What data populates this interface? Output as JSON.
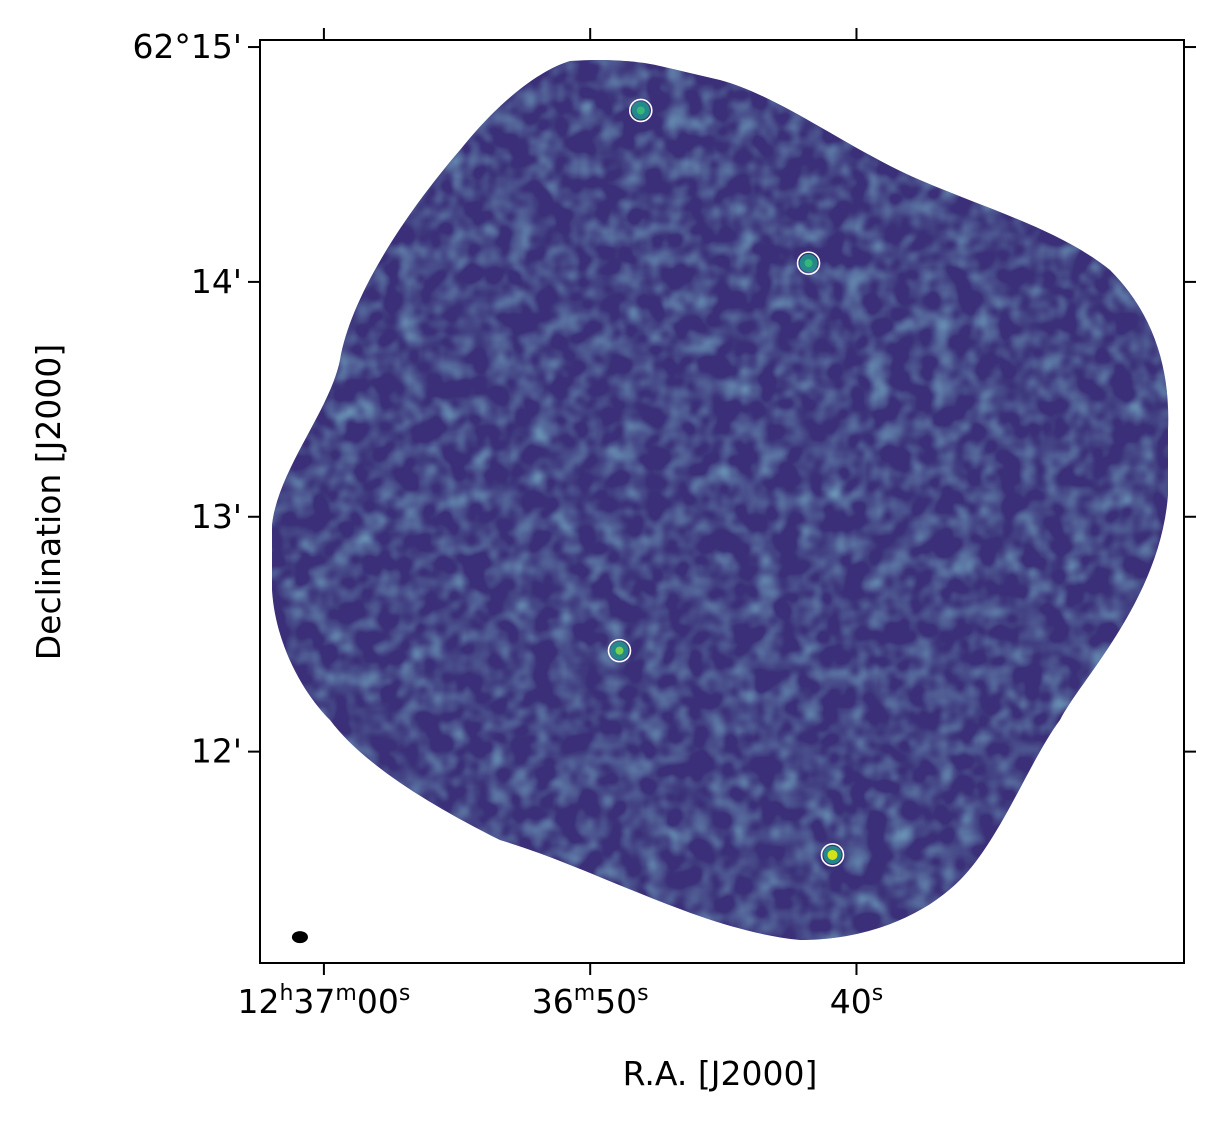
{
  "chart_data": {
    "type": "heatmap",
    "title": "",
    "xlabel": "R.A. [J2000]",
    "ylabel": "Declination [J2000]",
    "colormap": "viridis",
    "xlim_ra_seconds": [
      62.4,
      27.7
    ],
    "ylim_dec_arcmin": [
      11.1,
      15.03
    ],
    "x_ticks": [
      {
        "value": 60,
        "main": "12",
        "sup1": "h",
        "mid": "37",
        "sup2": "m",
        "end": "00",
        "sup3": "s"
      },
      {
        "value": 50,
        "main": "",
        "sup1": "",
        "mid": "36",
        "sup2": "m",
        "end": "50",
        "sup3": "s"
      },
      {
        "value": 40,
        "main": "",
        "sup1": "",
        "mid": "",
        "sup2": "",
        "end": "40",
        "sup3": "s"
      }
    ],
    "y_ticks": [
      {
        "value": 15,
        "label": "62°15'"
      },
      {
        "value": 14,
        "label": "14'"
      },
      {
        "value": 13,
        "label": "13'"
      },
      {
        "value": 12,
        "label": "12'"
      }
    ],
    "sources": [
      {
        "ra_s": 48.1,
        "dec_arcmin": 14.73,
        "brightness": 0.55
      },
      {
        "ra_s": 41.8,
        "dec_arcmin": 14.08,
        "brightness": 0.58
      },
      {
        "ra_s": 48.9,
        "dec_arcmin": 12.43,
        "brightness": 0.75
      },
      {
        "ra_s": 40.9,
        "dec_arcmin": 11.56,
        "brightness": 0.95
      }
    ],
    "beam": {
      "ra_s": 60.9,
      "dec_arcmin": 11.21,
      "shape": "ellipse",
      "color": "#000000"
    },
    "marker_style": {
      "shape": "circle",
      "color": "#ffffff",
      "fill": "none"
    },
    "colors": {
      "background_mask": "#ffffff",
      "frame": "#000000"
    }
  }
}
